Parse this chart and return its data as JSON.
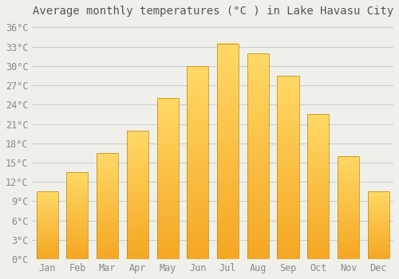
{
  "title": "Average monthly temperatures (°C ) in Lake Havasu City",
  "months": [
    "Jan",
    "Feb",
    "Mar",
    "Apr",
    "May",
    "Jun",
    "Jul",
    "Aug",
    "Sep",
    "Oct",
    "Nov",
    "Dec"
  ],
  "values": [
    10.5,
    13.5,
    16.5,
    20.0,
    25.0,
    30.0,
    33.5,
    32.0,
    28.5,
    22.5,
    16.0,
    10.5
  ],
  "bar_color_bottom": "#F5A623",
  "bar_color_top": "#FFD966",
  "bar_edge_color": "#B8860B",
  "background_color": "#F0F0EB",
  "grid_color": "#CCCCCC",
  "ylim": [
    0,
    37
  ],
  "yticks": [
    0,
    3,
    6,
    9,
    12,
    15,
    18,
    21,
    24,
    27,
    30,
    33,
    36
  ],
  "ytick_labels": [
    "0°C",
    "3°C",
    "6°C",
    "9°C",
    "12°C",
    "15°C",
    "18°C",
    "21°C",
    "24°C",
    "27°C",
    "30°C",
    "33°C",
    "36°C"
  ],
  "title_fontsize": 10,
  "tick_fontsize": 8.5,
  "tick_color": "#888888",
  "bar_width": 0.72
}
